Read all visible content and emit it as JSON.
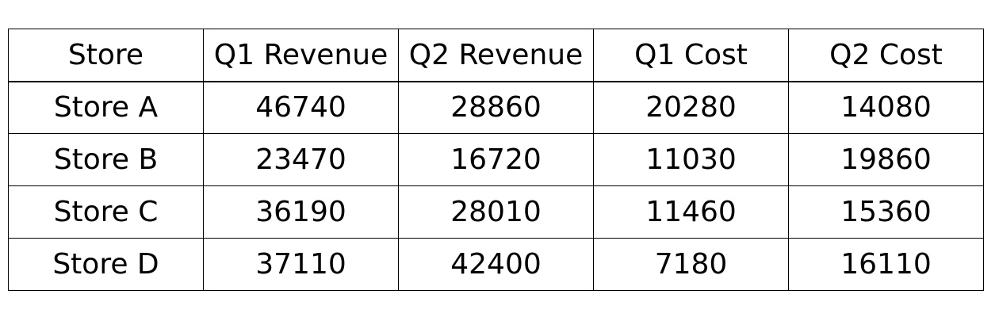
{
  "chart_data": {
    "type": "table",
    "columns": [
      "Store",
      "Q1 Revenue",
      "Q2 Revenue",
      "Q1 Cost",
      "Q2 Cost"
    ],
    "rows": [
      [
        "Store A",
        46740,
        28860,
        20280,
        14080
      ],
      [
        "Store B",
        23470,
        16720,
        11030,
        19860
      ],
      [
        "Store C",
        36190,
        28010,
        11460,
        15360
      ],
      [
        "Store D",
        37110,
        42400,
        7180,
        16110
      ]
    ]
  }
}
